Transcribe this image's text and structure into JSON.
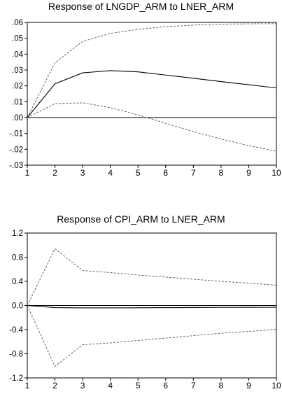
{
  "chart_data": [
    {
      "type": "line",
      "title": "Response of LNGDP_ARM to LNER_ARM",
      "x": [
        1,
        2,
        3,
        4,
        5,
        6,
        7,
        8,
        9,
        10
      ],
      "xlim": [
        1,
        10
      ],
      "ylim": [
        -0.03,
        0.06
      ],
      "yticks": [
        0.06,
        0.05,
        0.04,
        0.03,
        0.02,
        0.01,
        0.0,
        -0.01,
        -0.02,
        -0.03
      ],
      "ytick_labels": [
        ".06",
        ".05",
        ".04",
        ".03",
        ".02",
        ".01",
        ".00",
        "-.01",
        "-.02",
        "-.03"
      ],
      "xtick_labels": [
        "1",
        "2",
        "3",
        "4",
        "5",
        "6",
        "7",
        "8",
        "9",
        "10"
      ],
      "zero_line": true,
      "grid": false,
      "series": [
        {
          "values": [
            0.0,
            0.0345,
            0.048,
            0.053,
            0.0557,
            0.0573,
            0.0583,
            0.0589,
            0.0591,
            0.0592
          ],
          "style": "dashed"
        },
        {
          "values": [
            0.0,
            0.0213,
            0.0282,
            0.0296,
            0.0288,
            0.0268,
            0.0248,
            0.0227,
            0.0207,
            0.0187
          ],
          "style": "solid"
        },
        {
          "values": [
            0.0,
            0.0088,
            0.0093,
            0.0063,
            0.0017,
            -0.0036,
            -0.0088,
            -0.0135,
            -0.0177,
            -0.0212
          ],
          "style": "dashed"
        }
      ],
      "colors": {
        "line": "#000000",
        "band": "#555555"
      }
    },
    {
      "type": "line",
      "title": "Response of CPI_ARM to LNER_ARM",
      "x": [
        1,
        2,
        3,
        4,
        5,
        6,
        7,
        8,
        9,
        10
      ],
      "xlim": [
        1,
        10
      ],
      "ylim": [
        -1.2,
        1.2
      ],
      "yticks": [
        1.2,
        0.8,
        0.4,
        0.0,
        -0.4,
        -0.8,
        -1.2
      ],
      "ytick_labels": [
        "1.2",
        "0.8",
        "0.4",
        "0.0",
        "-0.4",
        "-0.8",
        "-1.2"
      ],
      "xtick_labels": [
        "1",
        "2",
        "3",
        "4",
        "5",
        "6",
        "7",
        "8",
        "9",
        "10"
      ],
      "zero_line": true,
      "grid": false,
      "series": [
        {
          "values": [
            0.0,
            0.94,
            0.58,
            0.545,
            0.505,
            0.47,
            0.435,
            0.4,
            0.37,
            0.335
          ],
          "style": "dashed"
        },
        {
          "values": [
            0.0,
            -0.035,
            -0.04,
            -0.04,
            -0.038,
            -0.036,
            -0.034,
            -0.032,
            -0.031,
            -0.03
          ],
          "style": "solid"
        },
        {
          "values": [
            0.0,
            -1.01,
            -0.65,
            -0.62,
            -0.58,
            -0.54,
            -0.5,
            -0.46,
            -0.43,
            -0.395
          ],
          "style": "dashed"
        }
      ],
      "colors": {
        "line": "#000000",
        "band": "#555555"
      }
    }
  ]
}
